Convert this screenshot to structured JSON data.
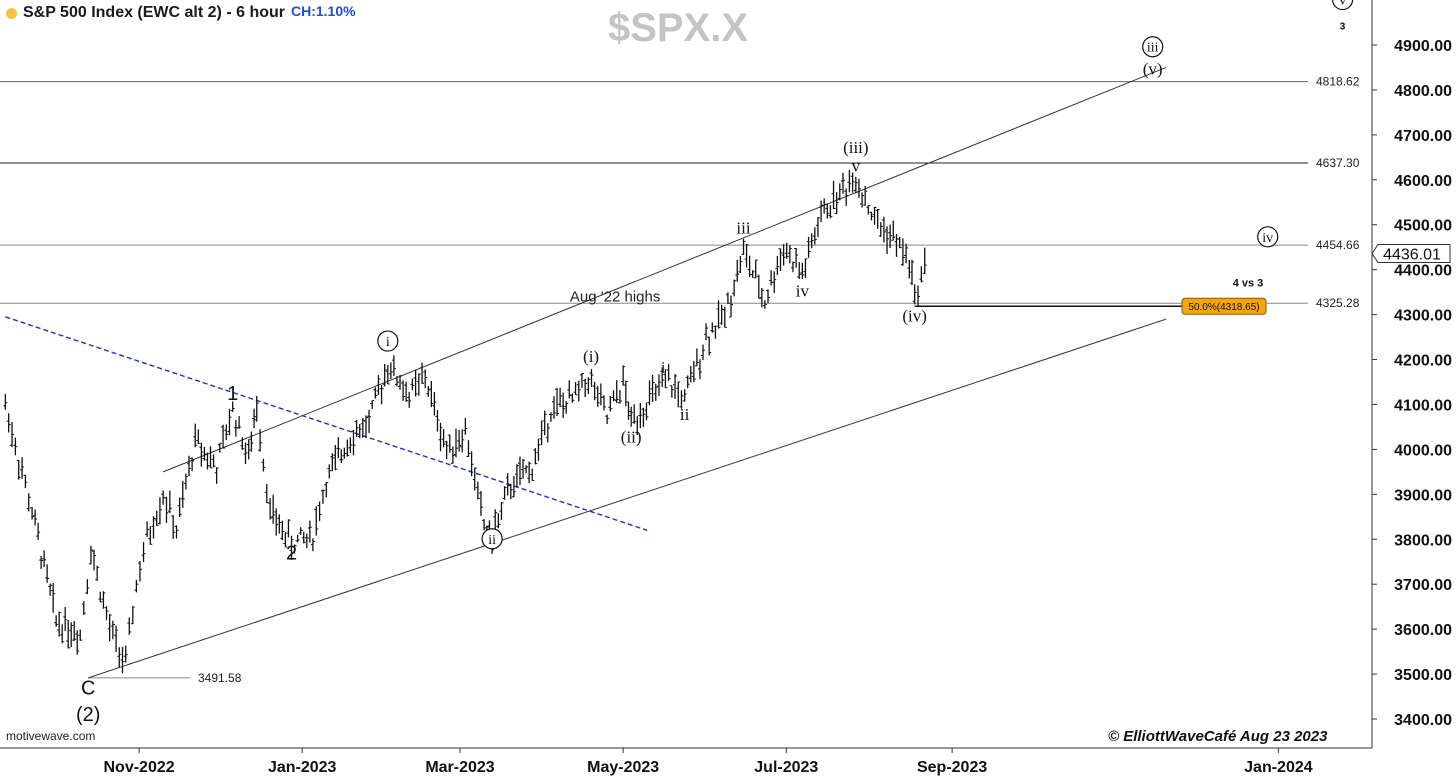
{
  "header": {
    "title": "S&P 500 Index (EWC alt 2) - 6 hour",
    "change": "CH:1.10%",
    "symbol": "$SPX.X",
    "dot_color": "#f5c342",
    "change_color": "#1f4fd1"
  },
  "footer": {
    "source": "motivewave.com",
    "credit": "© ElliottWaveCafé Aug 23 2023"
  },
  "chart_data": {
    "type": "line",
    "style": "ohlc-bars",
    "title": "S&P 500 Index (EWC alt 2) - 6 hour",
    "xlabel": "",
    "ylabel": "",
    "x_ticks": [
      "Nov-2022",
      "Jan-2023",
      "Mar-2023",
      "May-2023",
      "Jul-2023",
      "Sep-2023",
      "Jan-2024"
    ],
    "y_ticks": [
      "3400.00",
      "3500.00",
      "3600.00",
      "3700.00",
      "3800.00",
      "3900.00",
      "4000.00",
      "4100.00",
      "4200.00",
      "4300.00",
      "4400.00",
      "4500.00",
      "4600.00",
      "4700.00",
      "4800.00",
      "4900.00"
    ],
    "ylim": [
      3380,
      4960
    ],
    "grid": false,
    "last_price": "4436.01",
    "series": [
      {
        "values": [
          [
            "2022-09-12",
            4100
          ],
          [
            "2022-09-22",
            3860
          ],
          [
            "2022-10-01",
            3620
          ],
          [
            "2022-10-10",
            3590
          ],
          [
            "2022-10-14",
            3780
          ],
          [
            "2022-10-21",
            3600
          ],
          [
            "2022-10-27",
            3520
          ],
          [
            "2022-10-31",
            3700
          ],
          [
            "2022-11-04",
            3800
          ],
          [
            "2022-11-10",
            3900
          ],
          [
            "2022-11-15",
            3820
          ],
          [
            "2022-11-22",
            4020
          ],
          [
            "2022-11-30",
            3960
          ],
          [
            "2022-12-06",
            4090
          ],
          [
            "2022-12-12",
            3980
          ],
          [
            "2022-12-15",
            4100
          ],
          [
            "2022-12-20",
            3860
          ],
          [
            "2022-12-28",
            3790
          ],
          [
            "2023-01-05",
            3810
          ],
          [
            "2023-01-10",
            3930
          ],
          [
            "2023-01-19",
            4030
          ],
          [
            "2023-01-26",
            4060
          ],
          [
            "2023-02-02",
            4190
          ],
          [
            "2023-02-10",
            4120
          ],
          [
            "2023-02-16",
            4160
          ],
          [
            "2023-02-24",
            4000
          ],
          [
            "2023-03-03",
            4040
          ],
          [
            "2023-03-10",
            3830
          ],
          [
            "2023-03-13",
            3808
          ],
          [
            "2023-03-20",
            3920
          ],
          [
            "2023-03-28",
            3960
          ],
          [
            "2023-04-04",
            4090
          ],
          [
            "2023-04-12",
            4110
          ],
          [
            "2023-04-18",
            4160
          ],
          [
            "2023-04-25",
            4070
          ],
          [
            "2023-05-01",
            4150
          ],
          [
            "2023-05-04",
            4060
          ],
          [
            "2023-05-12",
            4120
          ],
          [
            "2023-05-18",
            4150
          ],
          [
            "2023-05-24",
            4110
          ],
          [
            "2023-06-01",
            4250
          ],
          [
            "2023-06-08",
            4300
          ],
          [
            "2023-06-15",
            4440
          ],
          [
            "2023-06-23",
            4330
          ],
          [
            "2023-06-30",
            4450
          ],
          [
            "2023-07-07",
            4390
          ],
          [
            "2023-07-14",
            4520
          ],
          [
            "2023-07-21",
            4570
          ],
          [
            "2023-07-27",
            4607
          ],
          [
            "2023-08-03",
            4510
          ],
          [
            "2023-08-10",
            4470
          ],
          [
            "2023-08-16",
            4420
          ],
          [
            "2023-08-18",
            4335
          ],
          [
            "2023-08-23",
            4436
          ]
        ]
      }
    ],
    "horizontal_levels": [
      {
        "value": 4818.62,
        "label": "4818.62",
        "color": "#666666"
      },
      {
        "value": 4637.3,
        "label": "4637.30",
        "color": "#222222"
      },
      {
        "value": 4454.66,
        "label": "4454.66",
        "color": "#888888"
      },
      {
        "value": 4325.28,
        "label": "4325.28",
        "color": "#888888"
      },
      {
        "value": 3491.58,
        "label": "3491.58",
        "color": "#888888"
      }
    ],
    "trendlines": [
      {
        "name": "upper-channel",
        "from": [
          "2022-11-10",
          3950
        ],
        "to": [
          "2023-11-20",
          4850
        ],
        "color": "#333333",
        "dashed": false
      },
      {
        "name": "lower-channel",
        "from": [
          "2022-10-13",
          3491.58
        ],
        "to": [
          "2023-11-20",
          4290
        ],
        "color": "#333333",
        "dashed": false
      },
      {
        "name": "downtrend",
        "from": [
          "2022-09-12",
          4295
        ],
        "to": [
          "2023-05-10",
          3820
        ],
        "color": "#2233bb",
        "dashed": true
      }
    ],
    "annotations": [
      {
        "text": "Aug '22 highs",
        "x": "2023-04-28",
        "y": 4325
      },
      {
        "text": "4 vs 3",
        "x": "2023-11-05",
        "y": 4362
      },
      {
        "text": "50.0%(4318.65)",
        "x": "2023-10-22",
        "y": 4318.65,
        "box": true,
        "color": "#f5a40a"
      }
    ],
    "wave_labels": [
      {
        "text": "1",
        "x": "2022-12-06",
        "y": 4110,
        "style": "plain"
      },
      {
        "text": "2",
        "x": "2022-12-28",
        "y": 3755,
        "style": "plain"
      },
      {
        "text": "C",
        "x": "2022-10-13",
        "y": 3455,
        "style": "plain"
      },
      {
        "text": "(2)",
        "x": "2022-10-13",
        "y": 3395,
        "style": "plain"
      },
      {
        "text": "i",
        "x": "2023-02-02",
        "y": 4230,
        "style": "circled"
      },
      {
        "text": "ii",
        "x": "2023-03-13",
        "y": 3790,
        "style": "circled"
      },
      {
        "text": "(i)",
        "x": "2023-04-19",
        "y": 4195,
        "style": "serif"
      },
      {
        "text": "(ii)",
        "x": "2023-05-04",
        "y": 4015,
        "style": "serif"
      },
      {
        "text": "i",
        "x": "2023-05-16",
        "y": 4170,
        "style": "serif-red"
      },
      {
        "text": "ii",
        "x": "2023-05-24",
        "y": 4065,
        "style": "serif"
      },
      {
        "text": "iii",
        "x": "2023-06-15",
        "y": 4480,
        "style": "serif"
      },
      {
        "text": "iv",
        "x": "2023-07-07",
        "y": 4340,
        "style": "serif"
      },
      {
        "text": "(iii)",
        "x": "2023-07-27",
        "y": 4660,
        "style": "serif"
      },
      {
        "text": "v",
        "x": "2023-07-27",
        "y": 4618,
        "style": "serif"
      },
      {
        "text": "(iv)",
        "x": "2023-08-18",
        "y": 4285,
        "style": "serif"
      },
      {
        "text": "iv",
        "x": "2023-12-28",
        "y": 4462,
        "style": "circled"
      },
      {
        "text": "iii",
        "x": "2023-11-15",
        "y": 4885,
        "style": "circled"
      },
      {
        "text": "(v)",
        "x": "2023-11-15",
        "y": 4834,
        "style": "serif"
      },
      {
        "text": "v",
        "x": "2024-01-25",
        "y": 4990,
        "style": "circled"
      },
      {
        "text": "3",
        "x": "2024-01-25",
        "y": 4934,
        "style": "small"
      }
    ]
  }
}
